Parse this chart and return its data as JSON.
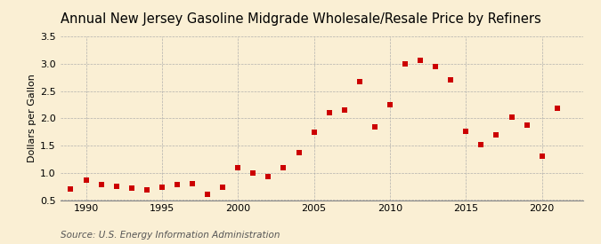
{
  "title": "Annual New Jersey Gasoline Midgrade Wholesale/Resale Price by Refiners",
  "ylabel": "Dollars per Gallon",
  "source": "Source: U.S. Energy Information Administration",
  "background_color": "#faefd4",
  "marker_color": "#cc0000",
  "years": [
    1989,
    1990,
    1991,
    1992,
    1993,
    1994,
    1995,
    1996,
    1997,
    1998,
    1999,
    2000,
    2001,
    2002,
    2003,
    2004,
    2005,
    2006,
    2007,
    2008,
    2009,
    2010,
    2011,
    2012,
    2013,
    2014,
    2015,
    2016,
    2017,
    2018,
    2019,
    2020,
    2021
  ],
  "values": [
    0.7,
    0.87,
    0.79,
    0.75,
    0.72,
    0.68,
    0.74,
    0.78,
    0.8,
    0.6,
    0.73,
    1.09,
    1.0,
    0.93,
    1.09,
    1.37,
    1.75,
    2.1,
    2.15,
    2.68,
    1.85,
    2.25,
    3.0,
    3.07,
    2.95,
    2.7,
    1.77,
    1.52,
    1.7,
    2.02,
    1.87,
    1.31,
    2.19
  ],
  "ylim": [
    0.5,
    3.5
  ],
  "yticks": [
    0.5,
    1.0,
    1.5,
    2.0,
    2.5,
    3.0,
    3.5
  ],
  "xticks": [
    1990,
    1995,
    2000,
    2005,
    2010,
    2015,
    2020
  ],
  "xlim": [
    1988.3,
    2022.7
  ],
  "title_fontsize": 10.5,
  "axis_fontsize": 8,
  "source_fontsize": 7.5,
  "marker_size": 14
}
